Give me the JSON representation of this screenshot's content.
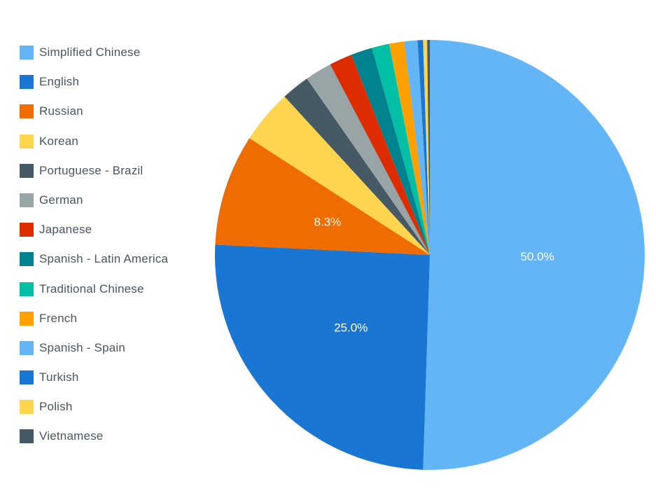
{
  "chart_data": {
    "type": "pie",
    "categories": [
      "Simplified Chinese",
      "English",
      "Russian",
      "Korean",
      "Portuguese - Brazil",
      "German",
      "Japanese",
      "Spanish - Latin America",
      "Traditional Chinese",
      "French",
      "Spanish - Spain",
      "Turkish",
      "Polish",
      "Vietnamese"
    ],
    "values": [
      50.0,
      25.0,
      8.3,
      4.0,
      2.1,
      2.0,
      1.7,
      1.6,
      1.3,
      1.1,
      1.0,
      0.4,
      0.3,
      0.2
    ],
    "data_labels": [
      "50.0%",
      "25.0%",
      "8.3%",
      "",
      "",
      "",
      "",
      "",
      "",
      "",
      "",
      "",
      "",
      ""
    ],
    "colors": [
      "#64b5f6",
      "#1976d2",
      "#ef6c00",
      "#ffd54f",
      "#455a64",
      "#98a4a6",
      "#dd2c00",
      "#00838f",
      "#00bfa5",
      "#ffa000",
      "#64b5f6",
      "#1976d2",
      "#ffd54f",
      "#455a64"
    ],
    "legend_position": "left",
    "start_angle": "top",
    "direction": "clockwise"
  }
}
